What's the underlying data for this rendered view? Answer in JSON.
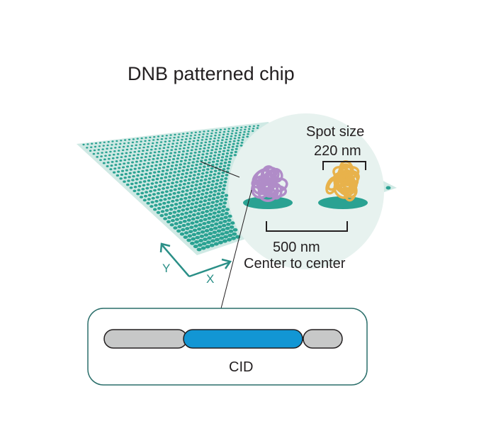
{
  "title": "DNB patterned chip",
  "spot_size": {
    "line1": "Spot size",
    "line2": "220 nm"
  },
  "pitch": {
    "line1": "500 nm",
    "line2": "Center to center"
  },
  "axes": {
    "x": "X",
    "y": "Y"
  },
  "bar_label": "CID",
  "colors": {
    "chip": "#cfe9e4",
    "spot": "#2aa292",
    "magnifier": "#e7f2ef",
    "dnb_left": "#b08cc8",
    "dnb_right": "#e8b24b",
    "axis": "#2a8f87",
    "segment_gray": "#c7c8c8",
    "segment_blue": "#1296d4",
    "box_border": "#2a6e6a"
  }
}
